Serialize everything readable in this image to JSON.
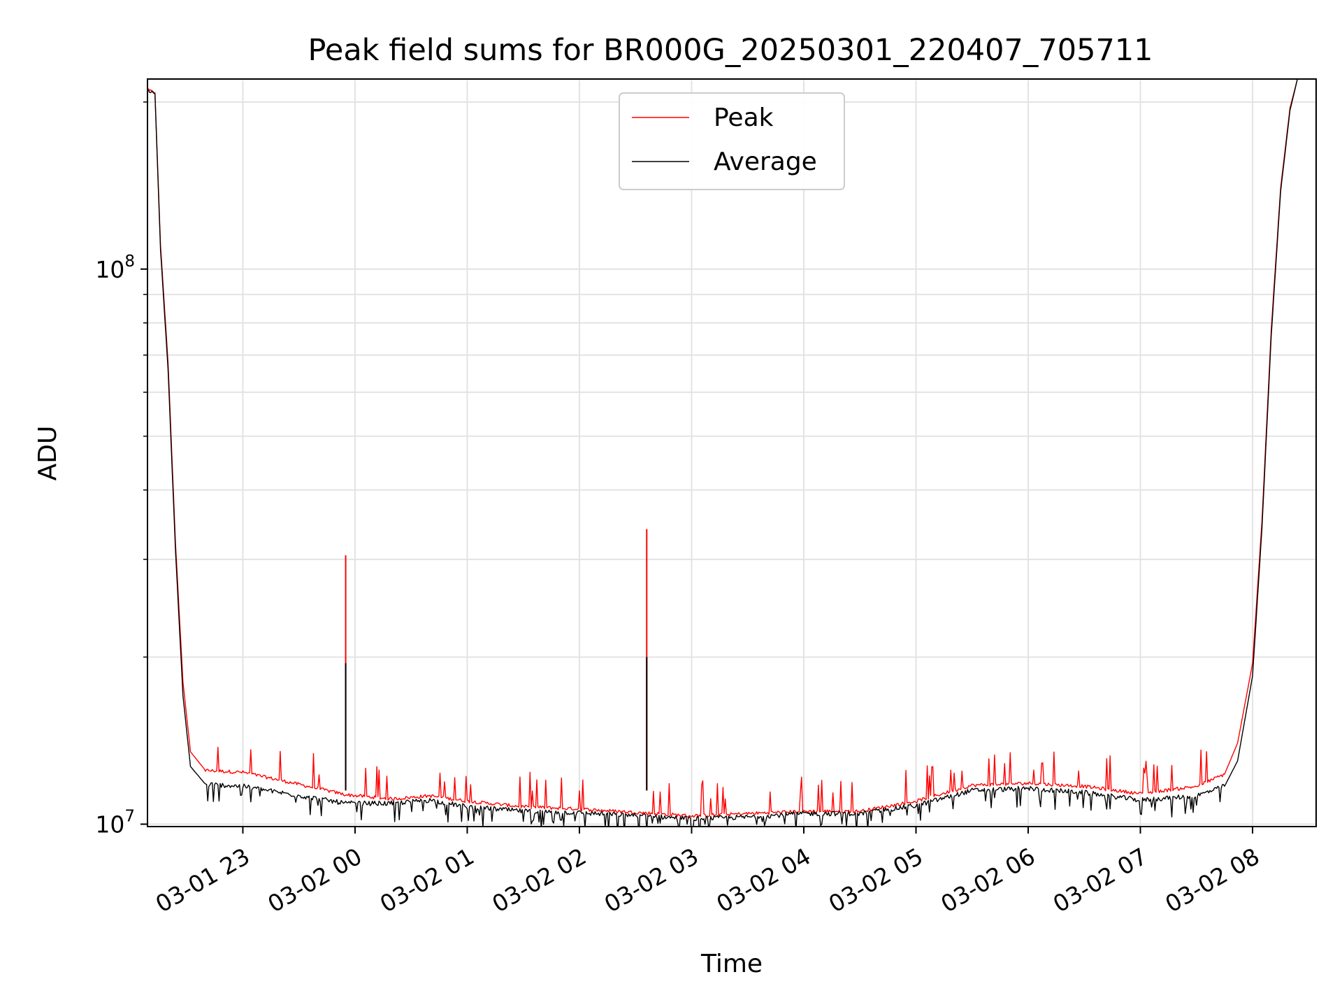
{
  "chart_data": {
    "type": "line",
    "title": "Peak field sums for BR000G_20250301_220407_705711",
    "xlabel": "Time",
    "ylabel": "ADU",
    "yscale": "log",
    "grid": true,
    "legend_position": "top-center",
    "xlim": [
      "2025-03-01 22:09",
      "2025-03-02 08:34"
    ],
    "ylim": [
      9900000,
      220000000
    ],
    "x_ticks": [
      {
        "time": "2025-03-01 23:00",
        "label": "03-01 23"
      },
      {
        "time": "2025-03-02 00:00",
        "label": "03-02 00"
      },
      {
        "time": "2025-03-02 01:00",
        "label": "03-02 01"
      },
      {
        "time": "2025-03-02 02:00",
        "label": "03-02 02"
      },
      {
        "time": "2025-03-02 03:00",
        "label": "03-02 03"
      },
      {
        "time": "2025-03-02 04:00",
        "label": "03-02 04"
      },
      {
        "time": "2025-03-02 05:00",
        "label": "03-02 05"
      },
      {
        "time": "2025-03-02 06:00",
        "label": "03-02 06"
      },
      {
        "time": "2025-03-02 07:00",
        "label": "03-02 07"
      },
      {
        "time": "2025-03-02 08:00",
        "label": "03-02 08"
      }
    ],
    "y_major_ticks": [
      {
        "value": 10000000,
        "label_base": "10",
        "label_exp": "7"
      },
      {
        "value": 100000000,
        "label_base": "10",
        "label_exp": "8"
      }
    ],
    "y_minor_ticks": [
      20000000,
      30000000,
      40000000,
      50000000,
      60000000,
      70000000,
      80000000,
      90000000,
      200000000
    ],
    "series": [
      {
        "name": "Peak",
        "color": "#ff0000",
        "points": [
          [
            "2025-03-01 22:09",
            210000000
          ],
          [
            "2025-03-01 22:13",
            208000000
          ],
          [
            "2025-03-01 22:16",
            110000000
          ],
          [
            "2025-03-01 22:20",
            68000000
          ],
          [
            "2025-03-01 22:24",
            32000000
          ],
          [
            "2025-03-01 22:28",
            18000000
          ],
          [
            "2025-03-01 22:32",
            13500000
          ],
          [
            "2025-03-01 22:40",
            12500000
          ],
          [
            "2025-03-01 23:00",
            12400000
          ],
          [
            "2025-03-01 23:20",
            12000000
          ],
          [
            "2025-03-01 23:55",
            11300000
          ],
          [
            "2025-03-02 00:20",
            11100000
          ],
          [
            "2025-03-02 00:40",
            11250000
          ],
          [
            "2025-03-02 01:00",
            11000000
          ],
          [
            "2025-03-02 01:30",
            10750000
          ],
          [
            "2025-03-02 02:00",
            10650000
          ],
          [
            "2025-03-02 02:30",
            10500000
          ],
          [
            "2025-03-02 03:00",
            10350000
          ],
          [
            "2025-03-02 03:30",
            10450000
          ],
          [
            "2025-03-02 04:00",
            10550000
          ],
          [
            "2025-03-02 04:30",
            10550000
          ],
          [
            "2025-03-02 05:00",
            11000000
          ],
          [
            "2025-03-02 05:30",
            11750000
          ],
          [
            "2025-03-02 06:00",
            11850000
          ],
          [
            "2025-03-02 06:30",
            11700000
          ],
          [
            "2025-03-02 07:00",
            11350000
          ],
          [
            "2025-03-02 07:30",
            11700000
          ],
          [
            "2025-03-02 07:45",
            12300000
          ],
          [
            "2025-03-02 07:52",
            14000000
          ],
          [
            "2025-03-02 08:00",
            19500000
          ],
          [
            "2025-03-02 08:05",
            35000000
          ],
          [
            "2025-03-02 08:10",
            78000000
          ],
          [
            "2025-03-02 08:15",
            140000000
          ],
          [
            "2025-03-02 08:20",
            195000000
          ],
          [
            "2025-03-02 08:24",
            220000000
          ]
        ],
        "spikes": [
          [
            "2025-03-01 23:55",
            30500000
          ],
          [
            "2025-03-02 02:36",
            34000000
          ]
        ]
      },
      {
        "name": "Average",
        "color": "#000000",
        "points": [
          [
            "2025-03-01 22:09",
            210000000
          ],
          [
            "2025-03-01 22:13",
            207000000
          ],
          [
            "2025-03-01 22:16",
            108000000
          ],
          [
            "2025-03-01 22:20",
            66000000
          ],
          [
            "2025-03-01 22:24",
            31000000
          ],
          [
            "2025-03-01 22:28",
            17000000
          ],
          [
            "2025-03-01 22:32",
            12700000
          ],
          [
            "2025-03-01 22:40",
            11800000
          ],
          [
            "2025-03-01 23:00",
            11700000
          ],
          [
            "2025-03-01 23:20",
            11400000
          ],
          [
            "2025-03-01 23:55",
            10900000
          ],
          [
            "2025-03-02 00:20",
            10900000
          ],
          [
            "2025-03-02 00:40",
            11050000
          ],
          [
            "2025-03-02 01:00",
            10750000
          ],
          [
            "2025-03-02 01:30",
            10550000
          ],
          [
            "2025-03-02 02:00",
            10480000
          ],
          [
            "2025-03-02 02:30",
            10380000
          ],
          [
            "2025-03-02 03:00",
            10220000
          ],
          [
            "2025-03-02 03:30",
            10300000
          ],
          [
            "2025-03-02 04:00",
            10450000
          ],
          [
            "2025-03-02 04:30",
            10450000
          ],
          [
            "2025-03-02 05:00",
            10800000
          ],
          [
            "2025-03-02 05:30",
            11500000
          ],
          [
            "2025-03-02 06:00",
            11600000
          ],
          [
            "2025-03-02 06:30",
            11400000
          ],
          [
            "2025-03-02 07:00",
            11050000
          ],
          [
            "2025-03-02 07:30",
            11250000
          ],
          [
            "2025-03-02 07:45",
            11700000
          ],
          [
            "2025-03-02 07:52",
            13000000
          ],
          [
            "2025-03-02 08:00",
            18500000
          ],
          [
            "2025-03-02 08:05",
            34000000
          ],
          [
            "2025-03-02 08:10",
            76000000
          ],
          [
            "2025-03-02 08:15",
            138000000
          ],
          [
            "2025-03-02 08:20",
            193000000
          ],
          [
            "2025-03-02 08:24",
            220000000
          ]
        ],
        "spikes": [
          [
            "2025-03-01 23:55",
            19500000
          ],
          [
            "2025-03-02 02:36",
            20000000
          ]
        ]
      }
    ]
  }
}
